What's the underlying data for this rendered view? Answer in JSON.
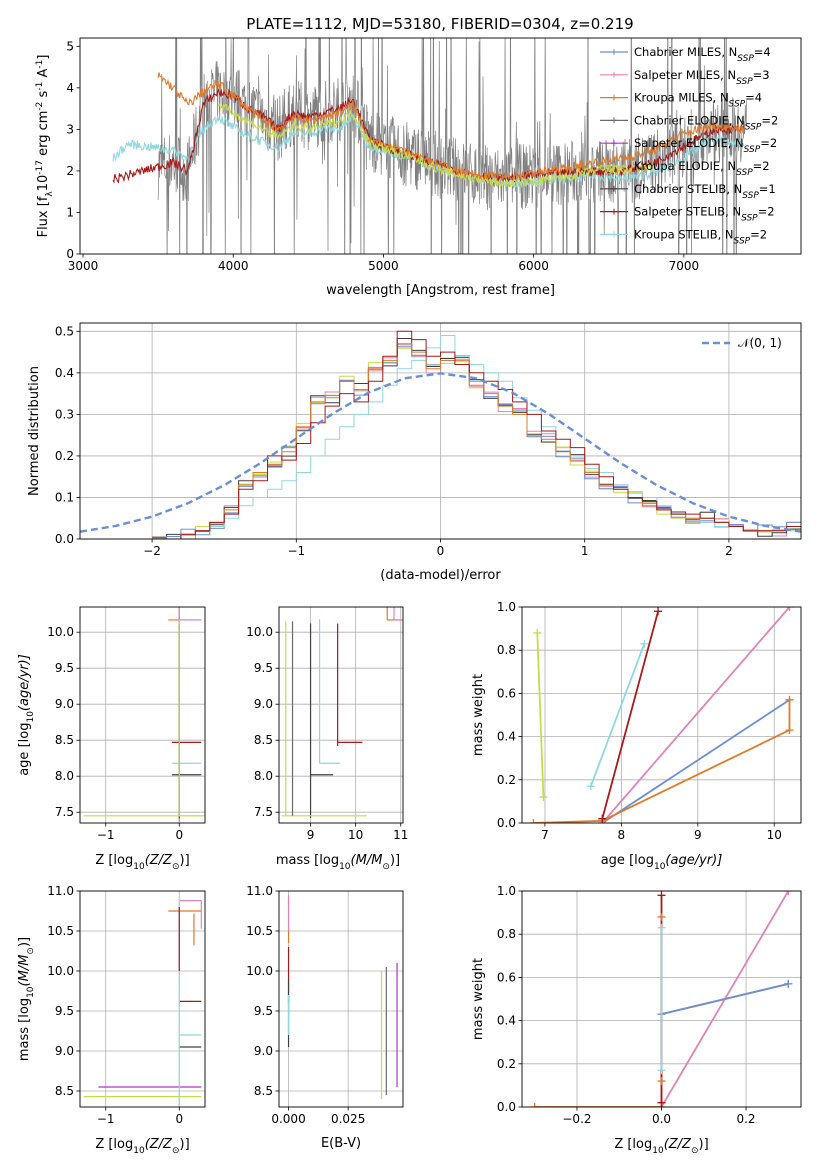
{
  "figure_title": "PLATE=1112, MJD=53180, FIBERID=0304, z=0.219",
  "colors": {
    "chabrier_miles": "#6a8fd8",
    "salpeter_miles": "#e183b9",
    "kroupa_miles": "#e07b28",
    "chabrier_elodie": "#6b6b6b",
    "salpeter_elodie": "#b233c8",
    "kroupa_elodie": "#c7dc4a",
    "chabrier_stelib": "#404040",
    "salpeter_stelib": "#a61a1a",
    "kroupa_stelib": "#8fd8e0",
    "data_gray": "#808080",
    "gauss_blue": "#6a8fd8",
    "orange_mark": "#e07b28"
  },
  "chart_data": [
    {
      "type": "line",
      "title": "PLATE=1112, MJD=53180, FIBERID=0304, z=0.219",
      "xlabel": "wavelength [Angstrom, rest frame]",
      "ylabel_main": "Flux [f",
      "ylabel_sub": "λ",
      "ylabel_tail": "10",
      "ylabel_exp": "-17",
      "ylabel_units": " erg cm",
      "ylabel_exp2": "-2",
      "ylabel_units2": " s",
      "ylabel_exp3": "-1",
      "ylabel_units3": " A",
      "ylabel_exp4": "-1",
      "ylabel_end": "]",
      "xlim": [
        2980,
        7780
      ],
      "ylim": [
        0,
        5.2
      ],
      "xticks": [
        3000,
        4000,
        5000,
        6000,
        7000
      ],
      "yticks": [
        0,
        1,
        2,
        3,
        4,
        5
      ],
      "legend_placement": "upper-right",
      "legend": [
        {
          "label": "Chabrier MILES, N",
          "sub": "SSP",
          "eq": "=4",
          "color": "#6a8fd8"
        },
        {
          "label": "Salpeter MILES, N",
          "sub": "SSP",
          "eq": "=3",
          "color": "#e183b9"
        },
        {
          "label": "Kroupa MILES, N",
          "sub": "SSP",
          "eq": "=4",
          "color": "#e07b28"
        },
        {
          "label": "Chabrier ELODIE, N",
          "sub": "SSP",
          "eq": "=2",
          "color": "#6b6b6b"
        },
        {
          "label": "Salpeter ELODIE, N",
          "sub": "SSP",
          "eq": "=2",
          "color": "#b233c8"
        },
        {
          "label": "Kroupa ELODIE, N",
          "sub": "SSP",
          "eq": "=2",
          "color": "#c7dc4a"
        },
        {
          "label": "Chabrier STELIB, N",
          "sub": "SSP",
          "eq": "=1",
          "color": "#404040"
        },
        {
          "label": "Salpeter STELIB, N",
          "sub": "SSP",
          "eq": "=2",
          "color": "#a61a1a"
        },
        {
          "label": "Kroupa STELIB, N",
          "sub": "SSP",
          "eq": "=2",
          "color": "#8fd8e0"
        }
      ],
      "series": [
        {
          "name": "Kroupa STELIB",
          "color": "#8fd8e0",
          "x": [
            3200,
            3300,
            3400,
            3500,
            3600,
            3700,
            3800,
            3900,
            4000,
            4100,
            4200,
            4300,
            4400,
            4500,
            4600,
            4700,
            4800,
            4900,
            5000,
            5200,
            5400,
            5600,
            5800,
            6000,
            6200,
            6400,
            6600,
            6800,
            7000,
            7200,
            7400
          ],
          "y": [
            2.3,
            2.65,
            2.6,
            2.55,
            2.5,
            2.3,
            3.0,
            3.3,
            3.05,
            2.85,
            2.7,
            2.55,
            2.9,
            2.9,
            3.0,
            3.0,
            3.3,
            2.6,
            2.5,
            2.3,
            2.05,
            1.85,
            1.7,
            1.75,
            1.8,
            1.9,
            1.8,
            1.95,
            2.3,
            2.8,
            2.6
          ]
        },
        {
          "name": "Salpeter STELIB",
          "color": "#a61a1a",
          "x": [
            3200,
            3300,
            3400,
            3500,
            3600,
            3700,
            3800,
            3900,
            4000,
            4100,
            4200,
            4300,
            4400,
            4500,
            4600,
            4700,
            4800,
            4900,
            5000,
            5200,
            5400,
            5600,
            5800,
            6000,
            6200,
            6400,
            6600,
            6800,
            7000,
            7200,
            7400
          ],
          "y": [
            1.8,
            1.9,
            2.0,
            2.1,
            2.2,
            2.0,
            3.6,
            3.9,
            3.8,
            3.5,
            3.3,
            3.0,
            3.4,
            3.3,
            3.4,
            3.5,
            3.7,
            2.8,
            2.6,
            2.35,
            2.1,
            1.9,
            1.8,
            1.9,
            1.95,
            2.0,
            2.0,
            2.2,
            2.6,
            3.0,
            3.0
          ]
        },
        {
          "name": "Kroupa MILES",
          "color": "#e07b28",
          "x": [
            3500,
            3600,
            3700,
            3800,
            3900,
            4000,
            4100,
            4200,
            4300,
            4400,
            4500,
            4600,
            4700,
            4800,
            4900,
            5000,
            5200,
            5400,
            5600,
            5800,
            6000,
            6200,
            6400,
            6600,
            6800,
            7000,
            7200,
            7400
          ],
          "y": [
            4.3,
            4.0,
            3.6,
            3.9,
            4.1,
            3.8,
            3.5,
            3.2,
            3.0,
            3.3,
            3.2,
            3.3,
            3.4,
            3.6,
            2.8,
            2.6,
            2.4,
            2.1,
            1.9,
            1.85,
            1.95,
            2.05,
            2.2,
            2.3,
            2.5,
            2.9,
            3.1,
            3.0
          ]
        },
        {
          "name": "Kroupa ELODIE",
          "color": "#c7dc4a",
          "x": [
            3900,
            4000,
            4100,
            4200,
            4300,
            4400,
            4500,
            4600,
            4700,
            4800,
            4900,
            5000,
            5200,
            5400,
            5600,
            5800,
            6000,
            6200,
            6400,
            6600,
            6800
          ],
          "y": [
            3.6,
            3.4,
            3.2,
            3.0,
            2.8,
            3.1,
            3.0,
            3.1,
            3.2,
            3.4,
            2.7,
            2.55,
            2.3,
            2.0,
            1.8,
            1.7,
            1.75,
            1.85,
            2.0,
            2.0,
            2.1
          ]
        }
      ]
    },
    {
      "type": "line",
      "xlabel": "(data-model)/error",
      "ylabel": "Normed distribution",
      "legend_label": "𝒩(0, 1)",
      "legend_placement": "upper-right",
      "xlim": [
        -2.5,
        2.5
      ],
      "ylim": [
        0,
        0.52
      ],
      "xticks": [
        -2,
        -1,
        0,
        1,
        2
      ],
      "yticks": [
        0.0,
        0.1,
        0.2,
        0.3,
        0.4,
        0.5
      ],
      "bins_x_start": -2.0,
      "bins_step": 0.1,
      "hist_kroupa_stelib": [
        0.0,
        0.0,
        0.01,
        0.02,
        0.03,
        0.05,
        0.08,
        0.1,
        0.12,
        0.14,
        0.16,
        0.2,
        0.24,
        0.27,
        0.3,
        0.33,
        0.37,
        0.41,
        0.43,
        0.46,
        0.49,
        0.44,
        0.42,
        0.4,
        0.38,
        0.34,
        0.31,
        0.27,
        0.22,
        0.2,
        0.17,
        0.16,
        0.13,
        0.11,
        0.1,
        0.08,
        0.06,
        0.05,
        0.04,
        0.03,
        0.03,
        0.02,
        0.02,
        0.02,
        0.02
      ],
      "hist_salpeter_stelib": [
        0.0,
        0.0,
        0.01,
        0.02,
        0.04,
        0.06,
        0.12,
        0.14,
        0.2,
        0.19,
        0.23,
        0.28,
        0.32,
        0.35,
        0.33,
        0.38,
        0.44,
        0.5,
        0.48,
        0.44,
        0.45,
        0.42,
        0.4,
        0.38,
        0.36,
        0.33,
        0.3,
        0.26,
        0.24,
        0.22,
        0.18,
        0.15,
        0.12,
        0.1,
        0.09,
        0.07,
        0.06,
        0.06,
        0.05,
        0.04,
        0.03,
        0.02,
        0.02,
        0.02,
        0.03
      ],
      "hist_kroupa_miles": [
        0.0,
        0.0,
        0.01,
        0.02,
        0.04,
        0.07,
        0.13,
        0.16,
        0.18,
        0.21,
        0.27,
        0.33,
        0.34,
        0.38,
        0.36,
        0.41,
        0.43,
        0.47,
        0.45,
        0.41,
        0.43,
        0.43,
        0.37,
        0.35,
        0.32,
        0.3,
        0.25,
        0.24,
        0.21,
        0.19,
        0.16,
        0.13,
        0.12,
        0.1,
        0.08,
        0.07,
        0.06,
        0.05,
        0.05,
        0.04,
        0.03,
        0.02,
        0.02,
        0.02,
        0.03
      ],
      "gauss_x": [
        -2.5,
        -2.25,
        -2.0,
        -1.75,
        -1.5,
        -1.25,
        -1.0,
        -0.75,
        -0.5,
        -0.25,
        0.0,
        0.25,
        0.5,
        0.75,
        1.0,
        1.25,
        1.5,
        1.75,
        2.0,
        2.25,
        2.5
      ],
      "gauss_y": [
        0.0175,
        0.0317,
        0.054,
        0.0863,
        0.1295,
        0.1826,
        0.242,
        0.3011,
        0.3521,
        0.3867,
        0.3989,
        0.3867,
        0.3521,
        0.3011,
        0.242,
        0.1826,
        0.1295,
        0.0863,
        0.054,
        0.0317,
        0.0175
      ]
    },
    {
      "type": "scatter",
      "xlabel_pre": "Z [log",
      "xlabel_sub": "10",
      "xlabel_post": "(Z/Z",
      "xlabel_sun": "⊙",
      "xlabel_end": ")]",
      "ylabel_pre": "age  [log",
      "ylabel_sub": "10",
      "ylabel_post": "(age/yr)]",
      "xlim": [
        -1.35,
        0.35
      ],
      "ylim": [
        7.35,
        10.35
      ],
      "xticks": [
        -1,
        0
      ],
      "yticks": [
        7.5,
        8.0,
        8.5,
        9.0,
        9.5,
        10.0
      ]
    },
    {
      "type": "scatter",
      "xlabel_pre": "mass [log",
      "xlabel_sub": "10",
      "xlabel_post": "(M/M",
      "xlabel_sun": "⊙",
      "xlabel_end": ")]",
      "xlim": [
        8.3,
        11.05
      ],
      "ylim": [
        7.35,
        10.35
      ],
      "xticks": [
        9,
        10,
        11
      ],
      "yticks": [
        7.5,
        8.0,
        8.5,
        9.0,
        9.5,
        10.0
      ]
    },
    {
      "type": "line",
      "xlabel_pre": "age  [log",
      "xlabel_sub": "10",
      "xlabel_post": "(age/yr)]",
      "ylabel": "mass weight",
      "xlim": [
        6.7,
        10.35
      ],
      "ylim": [
        0,
        1.0
      ],
      "xticks": [
        7,
        8,
        9,
        10
      ],
      "yticks": [
        0.0,
        0.2,
        0.4,
        0.6,
        0.8,
        1.0
      ],
      "series": [
        {
          "name": "Chabrier MILES",
          "color": "#6a8fd8",
          "x": [
            7.75,
            10.2
          ],
          "y": [
            0.0,
            0.57
          ]
        },
        {
          "name": "Salpeter MILES",
          "color": "#e183b9",
          "x": [
            7.75,
            10.2
          ],
          "y": [
            0.0,
            1.0
          ]
        },
        {
          "name": "Kroupa MILES",
          "color": "#e07b28",
          "x": [
            6.85,
            7.75,
            10.2,
            10.2
          ],
          "y": [
            0.0,
            0.01,
            0.43,
            0.57
          ]
        },
        {
          "name": "Salpeter STELIB",
          "color": "#a61a1a",
          "x": [
            7.75,
            8.48
          ],
          "y": [
            0.02,
            0.98
          ]
        },
        {
          "name": "Kroupa STELIB",
          "color": "#8fd8e0",
          "x": [
            7.6,
            8.3
          ],
          "y": [
            0.17,
            0.83
          ]
        },
        {
          "name": "Kroupa ELODIE",
          "color": "#c7dc4a",
          "x": [
            6.9,
            6.98
          ],
          "y": [
            0.88,
            0.12
          ]
        }
      ]
    },
    {
      "type": "scatter",
      "xlabel_pre": "Z [log",
      "xlabel_sub": "10",
      "xlabel_post": "(Z/Z",
      "xlabel_sun": "⊙",
      "xlabel_end": ")]",
      "ylabel_pre": "mass [log",
      "ylabel_sub": "10",
      "ylabel_post": "(M/M",
      "ylabel_sun": "⊙",
      "ylabel_end": ")]",
      "xlim": [
        -1.35,
        0.35
      ],
      "ylim": [
        8.3,
        11.0
      ],
      "xticks": [
        -1,
        0
      ],
      "yticks": [
        8.5,
        9.0,
        9.5,
        10.0,
        10.5,
        11.0
      ]
    },
    {
      "type": "scatter",
      "xlabel": "E(B-V)",
      "xlim": [
        -0.004,
        0.048
      ],
      "ylim": [
        8.3,
        11.0
      ],
      "xticks": [
        "0.000",
        "0.025"
      ],
      "xtick_values": [
        0.0,
        0.025
      ],
      "yticks": [
        8.5,
        9.0,
        9.5,
        10.0,
        10.5,
        11.0
      ]
    },
    {
      "type": "line",
      "xlabel_pre": "Z [log",
      "xlabel_sub": "10",
      "xlabel_post": "(Z/Z",
      "xlabel_sun": "⊙",
      "xlabel_end": ")]",
      "ylabel": "mass weight",
      "xlim": [
        -0.33,
        0.33
      ],
      "ylim": [
        0,
        1.0
      ],
      "xticks": [
        "−0.2",
        "0.0",
        "0.2"
      ],
      "xtick_values": [
        -0.2,
        0.0,
        0.2
      ],
      "yticks": [
        0.0,
        0.2,
        0.4,
        0.6,
        0.8,
        1.0
      ],
      "series": [
        {
          "name": "Salpeter MILES",
          "color": "#e183b9",
          "x": [
            0.0,
            0.3
          ],
          "y": [
            0.0,
            1.0
          ]
        },
        {
          "name": "Kroupa MILES",
          "color": "#e07b28",
          "x": [
            -0.3,
            0.0,
            0.0,
            0.3
          ],
          "y": [
            0.0,
            0.0,
            0.43,
            0.57
          ]
        },
        {
          "name": "Chabrier MILES",
          "color": "#6a8fd8",
          "x": [
            0.0,
            0.3
          ],
          "y": [
            0.43,
            0.57
          ]
        },
        {
          "name": "Salpeter STELIB",
          "color": "#a61a1a",
          "x": [
            0.0,
            0.0
          ],
          "y": [
            0.02,
            0.98
          ]
        },
        {
          "name": "Kroupa STELIB",
          "color": "#8fd8e0",
          "x": [
            0.0,
            0.0
          ],
          "y": [
            0.17,
            0.83
          ]
        }
      ]
    }
  ]
}
